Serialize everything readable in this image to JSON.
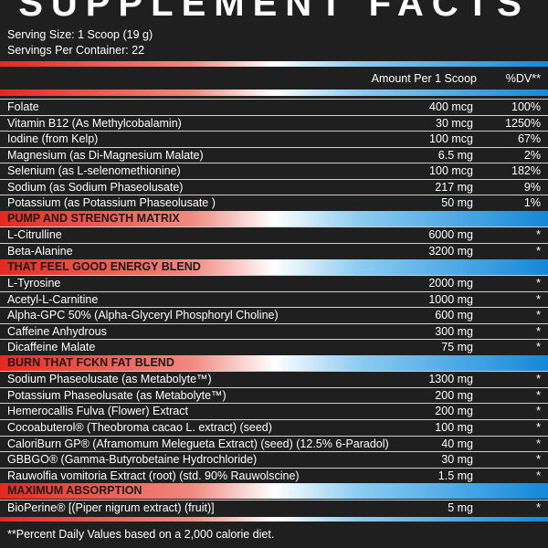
{
  "title": "SUPPLEMENT FACTS",
  "serving_size": "Serving Size: 1 Scoop (19 g)",
  "servings_per_container": "Servings Per Container: 22",
  "header": {
    "amount": "Amount Per 1 Scoop",
    "dv": "%DV**"
  },
  "rows": [
    {
      "name": "Folate",
      "amount": "400 mcg",
      "dv": "100%"
    },
    {
      "name": "Vitamin B12 (As Methylcobalamin)",
      "amount": "30 mcg",
      "dv": "1250%"
    },
    {
      "name": "Iodine (from Kelp)",
      "amount": "100 mcg",
      "dv": "67%"
    },
    {
      "name": "Magnesium (as Di-Magnesium Malate)",
      "amount": "6.5 mg",
      "dv": "2%"
    },
    {
      "name": "Selenium (as L-selenomethionine)",
      "amount": "100 mcg",
      "dv": "182%"
    },
    {
      "name": "Sodium (as Sodium Phaseolusate)",
      "amount": "217 mg",
      "dv": "9%"
    },
    {
      "name": "Potassium (as Potassium Phaseolusate )",
      "amount": "50 mg",
      "dv": "1%"
    },
    {
      "heading": "PUMP AND STRENGTH MATRIX"
    },
    {
      "name": "L-Citrulline",
      "amount": "6000 mg",
      "dv": "*"
    },
    {
      "name": "Beta-Alanine",
      "amount": "3200 mg",
      "dv": "*"
    },
    {
      "heading": "THAT FEEL GOOD ENERGY BLEND"
    },
    {
      "name": "L-Tyrosine",
      "amount": "2000 mg",
      "dv": "*"
    },
    {
      "name": "Acetyl-L-Carnitine",
      "amount": "1000 mg",
      "dv": "*"
    },
    {
      "name": "Alpha-GPC 50% (Alpha-Glyceryl Phosphoryl Choline)",
      "amount": "600 mg",
      "dv": "*"
    },
    {
      "name": "Caffeine Anhydrous",
      "amount": "300 mg",
      "dv": "*"
    },
    {
      "name": "Dicaffeine Malate",
      "amount": "75 mg",
      "dv": "*"
    },
    {
      "heading": "BURN THAT FCKN FAT BLEND"
    },
    {
      "name": "Sodium Phaseolusate (as Metabolyte™)",
      "amount": "1300 mg",
      "dv": "*"
    },
    {
      "name": "Potassium Phaseolusate (as Metabolyte™)",
      "amount": "200 mg",
      "dv": "*"
    },
    {
      "name": "Hemerocallis Fulva (Flower) Extract",
      "amount": "200 mg",
      "dv": "*"
    },
    {
      "name": "Cocoabuterol® (Theobroma cacao L. extract) (seed)",
      "amount": "100 mg",
      "dv": "*"
    },
    {
      "name": "CaloriBurn GP® (Aframomum Melegueta Extract) (seed) (12.5% 6-Paradol)",
      "amount": "40 mg",
      "dv": "*"
    },
    {
      "name": "GBBGO® (Gamma-Butyrobetaine Hydrochloride)",
      "amount": "30 mg",
      "dv": "*"
    },
    {
      "name": "Rauwolfia vomitoria Extract (root) (std. 90% Rauwolscine)",
      "amount": "1.5 mg",
      "dv": "*"
    },
    {
      "heading": "MAXIMUM ABSORPTION"
    },
    {
      "name": "BioPerine® [(Piper nigrum extract) (fruit)]",
      "amount": "5 mg",
      "dv": "*"
    }
  ],
  "footnote": "**Percent Daily Values based on a 2,000 calorie diet."
}
